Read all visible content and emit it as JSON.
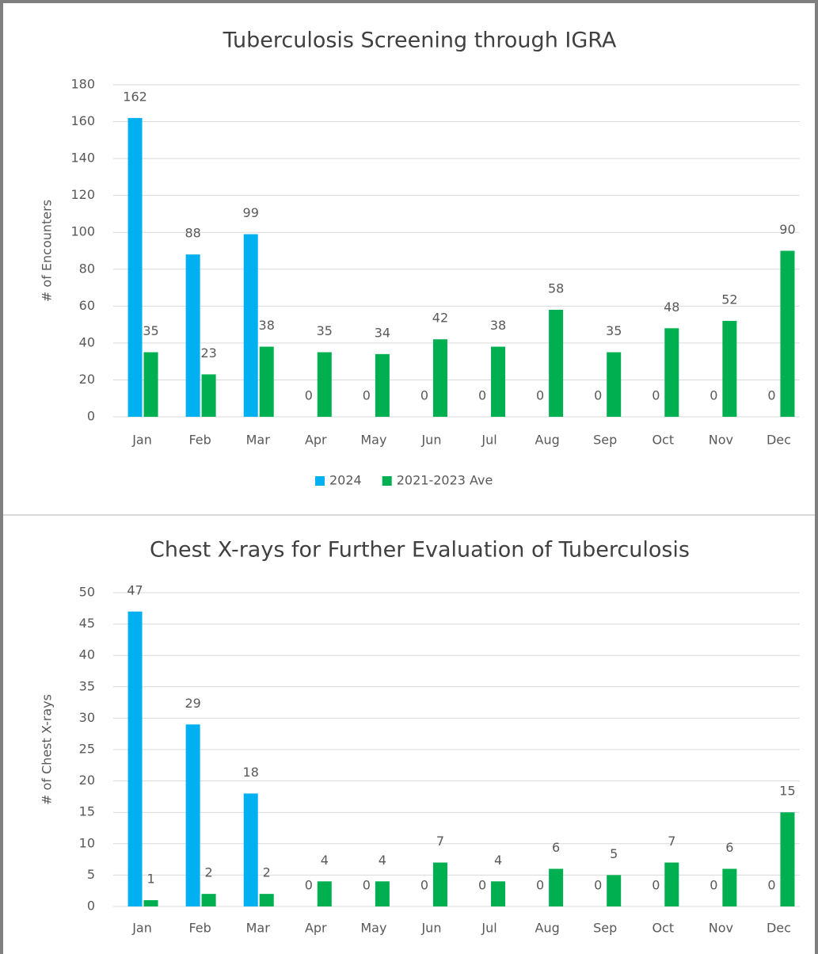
{
  "chart_data": [
    {
      "type": "bar",
      "title": "Tuberculosis Screening through IGRA",
      "y_label": "# of Encounters",
      "categories": [
        "Jan",
        "Feb",
        "Mar",
        "Apr",
        "May",
        "Jun",
        "Jul",
        "Aug",
        "Sep",
        "Oct",
        "Nov",
        "Dec"
      ],
      "series": [
        {
          "name": "2024",
          "color": "#00b0f0",
          "values": [
            162,
            88,
            99,
            0,
            0,
            0,
            0,
            0,
            0,
            0,
            0,
            0
          ]
        },
        {
          "name": "2021-2023 Ave",
          "color": "#00b050",
          "values": [
            35,
            23,
            38,
            35,
            34,
            42,
            38,
            58,
            35,
            48,
            52,
            90
          ]
        }
      ],
      "ylim": [
        0,
        180
      ],
      "yticks": [
        0,
        20,
        40,
        60,
        80,
        100,
        120,
        140,
        160,
        180
      ],
      "grid": true,
      "legend": "bottom"
    },
    {
      "type": "bar",
      "title": "Chest X-rays for Further Evaluation of Tuberculosis",
      "y_label": "# of Chest X-rays",
      "categories": [
        "Jan",
        "Feb",
        "Mar",
        "Apr",
        "May",
        "Jun",
        "Jul",
        "Aug",
        "Sep",
        "Oct",
        "Nov",
        "Dec"
      ],
      "series": [
        {
          "color": "#00b0f0",
          "values": [
            47,
            29,
            18,
            0,
            0,
            0,
            0,
            0,
            0,
            0,
            0,
            0
          ]
        },
        {
          "color": "#00b050",
          "values": [
            1,
            2,
            2,
            4,
            4,
            7,
            4,
            6,
            5,
            7,
            6,
            15
          ]
        }
      ],
      "ylim": [
        0,
        50
      ],
      "yticks": [
        0,
        5,
        10,
        15,
        20,
        25,
        30,
        35,
        40,
        45,
        50
      ],
      "grid": true
    }
  ]
}
